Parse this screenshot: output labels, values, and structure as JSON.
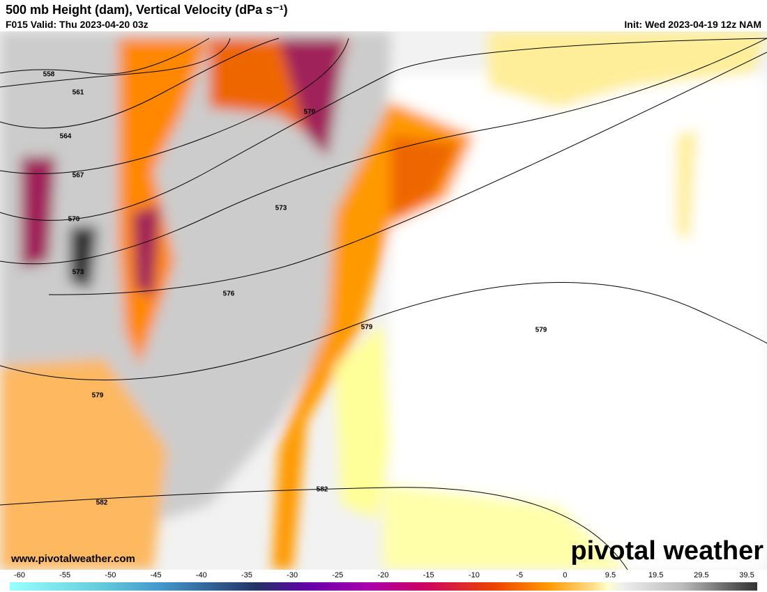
{
  "header": {
    "title": "500 mb Height (dam), Vertical Velocity (dPa s⁻¹)",
    "valid": "F015 Valid: Thu 2023-04-20 03z",
    "init": "Init: Wed 2023-04-19 12z NAM"
  },
  "contour_labels": [
    558,
    561,
    564,
    567,
    570,
    573,
    570,
    573,
    576,
    579,
    579,
    579,
    582,
    582
  ],
  "footer": {
    "website": "www.pivotalweather.com",
    "logo": "pivotal weather"
  },
  "colorbar": {
    "ticks": [
      -60,
      -55,
      -50,
      -45,
      -40,
      -35,
      -30,
      -25,
      -20,
      -15,
      -10,
      -5,
      0,
      9.5,
      19.5,
      29.5,
      39.5
    ]
  }
}
